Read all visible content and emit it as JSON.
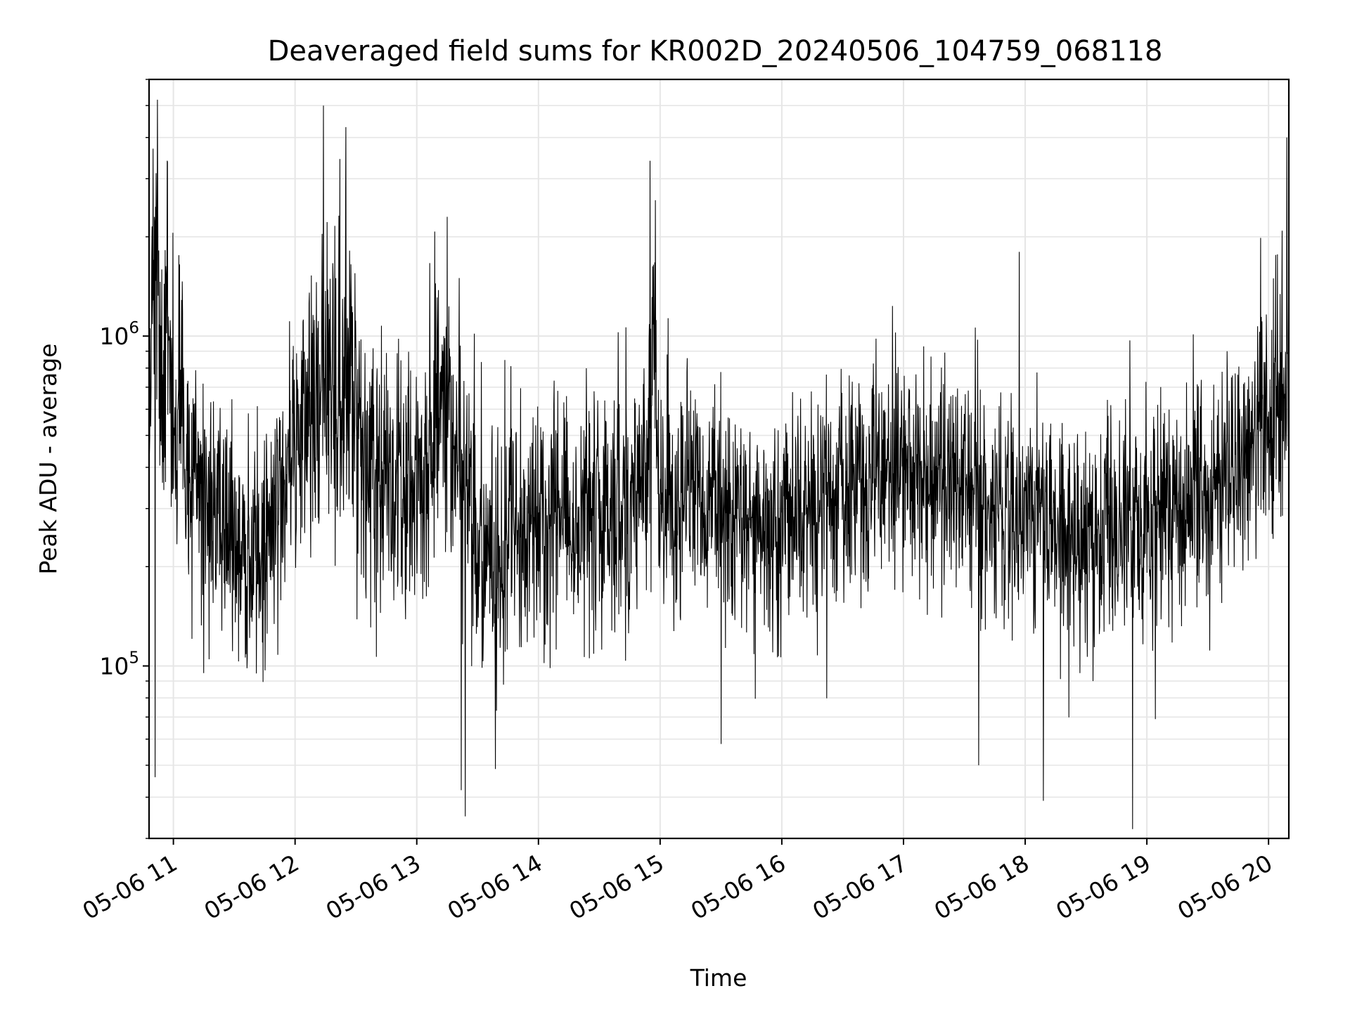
{
  "chart_data": {
    "type": "line",
    "title": "Deaveraged field sums for KR002D_20240506_104759_068118",
    "xlabel": "Time",
    "ylabel": "Peak ADU - average",
    "yscale": "log",
    "ylim": [
      30000,
      6000000
    ],
    "xlim": [
      "2024-05-06 10:48",
      "2024-05-06 20:10"
    ],
    "x_ticks": [
      {
        "t": "2024-05-06 11:00",
        "label": "05-06 11"
      },
      {
        "t": "2024-05-06 12:00",
        "label": "05-06 12"
      },
      {
        "t": "2024-05-06 13:00",
        "label": "05-06 13"
      },
      {
        "t": "2024-05-06 14:00",
        "label": "05-06 14"
      },
      {
        "t": "2024-05-06 15:00",
        "label": "05-06 15"
      },
      {
        "t": "2024-05-06 16:00",
        "label": "05-06 16"
      },
      {
        "t": "2024-05-06 17:00",
        "label": "05-06 17"
      },
      {
        "t": "2024-05-06 18:00",
        "label": "05-06 18"
      },
      {
        "t": "2024-05-06 19:00",
        "label": "05-06 19"
      },
      {
        "t": "2024-05-06 20:00",
        "label": "05-06 20"
      }
    ],
    "y_ticks": [
      {
        "value": 100000,
        "base": "10",
        "exp": "5"
      },
      {
        "value": 1000000,
        "base": "10",
        "exp": "6"
      }
    ],
    "grid": true,
    "line_color": "#000000",
    "grid_color": "#e6e6e6",
    "series": [
      {
        "x": [
          "2024-05-06 10:48",
          "2024-05-06 10:51",
          "2024-05-06 10:54",
          "2024-05-06 10:57",
          "2024-05-06 11:01",
          "2024-05-06 11:05",
          "2024-05-06 11:10",
          "2024-05-06 11:15",
          "2024-05-06 11:20",
          "2024-05-06 11:25",
          "2024-05-06 11:30",
          "2024-05-06 11:34",
          "2024-05-06 11:38",
          "2024-05-06 11:42",
          "2024-05-06 11:46",
          "2024-05-06 11:50",
          "2024-05-06 11:55",
          "2024-05-06 12:00",
          "2024-05-06 12:05",
          "2024-05-06 12:10",
          "2024-05-06 12:14",
          "2024-05-06 12:18",
          "2024-05-06 12:22",
          "2024-05-06 12:26",
          "2024-05-06 12:30",
          "2024-05-06 12:35",
          "2024-05-06 12:40",
          "2024-05-06 12:45",
          "2024-05-06 12:50",
          "2024-05-06 12:55",
          "2024-05-06 13:00",
          "2024-05-06 13:05",
          "2024-05-06 13:10",
          "2024-05-06 13:15",
          "2024-05-06 13:20",
          "2024-05-06 13:24",
          "2024-05-06 13:28",
          "2024-05-06 13:33",
          "2024-05-06 13:38",
          "2024-05-06 13:44",
          "2024-05-06 13:50",
          "2024-05-06 13:55",
          "2024-05-06 14:00",
          "2024-05-06 14:06",
          "2024-05-06 14:12",
          "2024-05-06 14:18",
          "2024-05-06 14:24",
          "2024-05-06 14:30",
          "2024-05-06 14:36",
          "2024-05-06 14:42",
          "2024-05-06 14:48",
          "2024-05-06 14:54",
          "2024-05-06 14:56",
          "2024-05-06 15:00",
          "2024-05-06 15:06",
          "2024-05-06 15:12",
          "2024-05-06 15:18",
          "2024-05-06 15:24",
          "2024-05-06 15:30",
          "2024-05-06 15:36",
          "2024-05-06 15:42",
          "2024-05-06 15:48",
          "2024-05-06 15:54",
          "2024-05-06 16:00",
          "2024-05-06 16:06",
          "2024-05-06 16:12",
          "2024-05-06 16:18",
          "2024-05-06 16:24",
          "2024-05-06 16:30",
          "2024-05-06 16:36",
          "2024-05-06 16:42",
          "2024-05-06 16:48",
          "2024-05-06 16:54",
          "2024-05-06 17:00",
          "2024-05-06 17:06",
          "2024-05-06 17:12",
          "2024-05-06 17:18",
          "2024-05-06 17:24",
          "2024-05-06 17:30",
          "2024-05-06 17:36",
          "2024-05-06 17:42",
          "2024-05-06 17:48",
          "2024-05-06 17:54",
          "2024-05-06 18:00",
          "2024-05-06 18:06",
          "2024-05-06 18:12",
          "2024-05-06 18:18",
          "2024-05-06 18:24",
          "2024-05-06 18:30",
          "2024-05-06 18:36",
          "2024-05-06 18:42",
          "2024-05-06 18:48",
          "2024-05-06 18:54",
          "2024-05-06 19:00",
          "2024-05-06 19:06",
          "2024-05-06 19:12",
          "2024-05-06 19:18",
          "2024-05-06 19:24",
          "2024-05-06 19:30",
          "2024-05-06 19:36",
          "2024-05-06 19:42",
          "2024-05-06 19:48",
          "2024-05-06 19:54",
          "2024-05-06 20:00",
          "2024-05-06 20:05",
          "2024-05-06 20:09"
        ],
        "y": [
          500000,
          2300000,
          700000,
          900000,
          600000,
          450000,
          400000,
          350000,
          300000,
          280000,
          250000,
          220000,
          200000,
          230000,
          260000,
          300000,
          350000,
          450000,
          550000,
          650000,
          700000,
          800000,
          900000,
          850000,
          600000,
          450000,
          400000,
          380000,
          350000,
          330000,
          350000,
          400000,
          500000,
          600000,
          450000,
          300000,
          250000,
          230000,
          220000,
          240000,
          250000,
          260000,
          260000,
          270000,
          280000,
          300000,
          310000,
          300000,
          280000,
          300000,
          350000,
          400000,
          900000,
          300000,
          320000,
          330000,
          340000,
          330000,
          300000,
          290000,
          280000,
          270000,
          260000,
          260000,
          270000,
          280000,
          300000,
          320000,
          330000,
          340000,
          360000,
          380000,
          400000,
          400000,
          380000,
          360000,
          350000,
          340000,
          330000,
          320000,
          310000,
          300000,
          290000,
          280000,
          270000,
          260000,
          250000,
          240000,
          230000,
          230000,
          250000,
          260000,
          270000,
          280000,
          290000,
          300000,
          310000,
          320000,
          330000,
          340000,
          360000,
          380000,
          550000,
          650000,
          700000,
          750000
        ],
        "spread": [
          0.6,
          0.7,
          0.6,
          0.6,
          0.55,
          0.55,
          0.5,
          0.5,
          0.5,
          0.5,
          0.5,
          0.5,
          0.5,
          0.5,
          0.5,
          0.5,
          0.5,
          0.55,
          0.6,
          0.6,
          0.6,
          0.6,
          0.6,
          0.6,
          0.55,
          0.5,
          0.5,
          0.5,
          0.5,
          0.5,
          0.5,
          0.5,
          0.55,
          0.55,
          0.5,
          0.5,
          0.5,
          0.5,
          0.5,
          0.5,
          0.5,
          0.5,
          0.5,
          0.5,
          0.5,
          0.5,
          0.5,
          0.5,
          0.5,
          0.5,
          0.5,
          0.5,
          0.65,
          0.45,
          0.45,
          0.45,
          0.45,
          0.45,
          0.45,
          0.45,
          0.45,
          0.45,
          0.45,
          0.45,
          0.45,
          0.45,
          0.45,
          0.45,
          0.45,
          0.45,
          0.45,
          0.45,
          0.45,
          0.45,
          0.45,
          0.45,
          0.45,
          0.45,
          0.45,
          0.45,
          0.45,
          0.45,
          0.45,
          0.45,
          0.45,
          0.45,
          0.45,
          0.45,
          0.45,
          0.45,
          0.45,
          0.45,
          0.45,
          0.45,
          0.45,
          0.45,
          0.45,
          0.45,
          0.45,
          0.45,
          0.45,
          0.45,
          0.5,
          0.5,
          0.5,
          0.55
        ]
      }
    ],
    "notable_peaks": [
      {
        "t": "2024-05-06 10:50",
        "value": 3700000
      },
      {
        "t": "2024-05-06 10:57",
        "value": 3400000
      },
      {
        "t": "2024-05-06 12:14",
        "value": 5000000
      },
      {
        "t": "2024-05-06 12:25",
        "value": 4300000
      },
      {
        "t": "2024-05-06 13:15",
        "value": 2300000
      },
      {
        "t": "2024-05-06 14:55",
        "value": 3400000
      },
      {
        "t": "2024-05-06 17:57",
        "value": 1800000
      },
      {
        "t": "2024-05-06 20:09",
        "value": 4000000
      }
    ],
    "notable_troughs": [
      {
        "t": "2024-05-06 10:51",
        "value": 46000
      },
      {
        "t": "2024-05-06 13:22",
        "value": 42000
      },
      {
        "t": "2024-05-06 13:24",
        "value": 35000
      },
      {
        "t": "2024-05-06 15:30",
        "value": 58000
      },
      {
        "t": "2024-05-06 17:37",
        "value": 50000
      },
      {
        "t": "2024-05-06 18:09",
        "value": 39000
      },
      {
        "t": "2024-05-06 18:53",
        "value": 32000
      }
    ]
  }
}
